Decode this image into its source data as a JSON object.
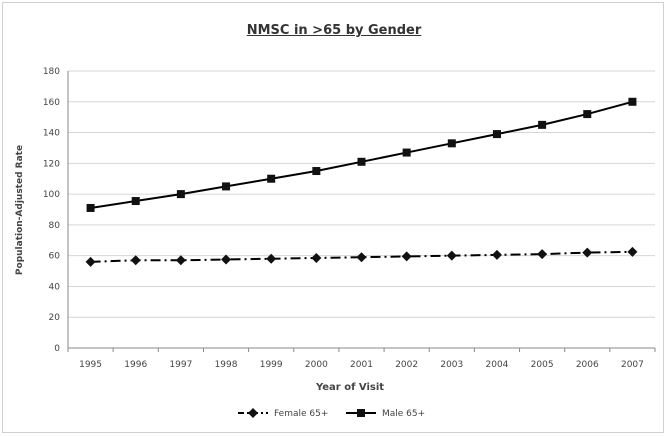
{
  "chart_data": {
    "type": "line",
    "title": "NMSC in >65 by Gender",
    "xlabel": "Year of Visit",
    "ylabel": "Population-Adjusted Rate",
    "ylim": [
      0,
      180
    ],
    "yticks": [
      0,
      20,
      40,
      60,
      80,
      100,
      120,
      140,
      160,
      180
    ],
    "categories": [
      "1995",
      "1996",
      "1997",
      "1998",
      "1999",
      "2000",
      "2001",
      "2002",
      "2003",
      "2004",
      "2005",
      "2006",
      "2007"
    ],
    "grid": "horizontal",
    "legend_position": "bottom",
    "series": [
      {
        "name": "Female 65+",
        "marker": "diamond",
        "line_style": "dash-dot",
        "color": "#000000",
        "values": [
          56,
          57,
          57,
          57.5,
          58,
          58.5,
          59,
          59.5,
          60,
          60.5,
          61,
          62,
          62.5
        ]
      },
      {
        "name": "Male 65+",
        "marker": "square",
        "line_style": "solid",
        "color": "#000000",
        "values": [
          91,
          95.5,
          100,
          105,
          110,
          115,
          121,
          127,
          133,
          139,
          145,
          152,
          160
        ]
      }
    ]
  }
}
